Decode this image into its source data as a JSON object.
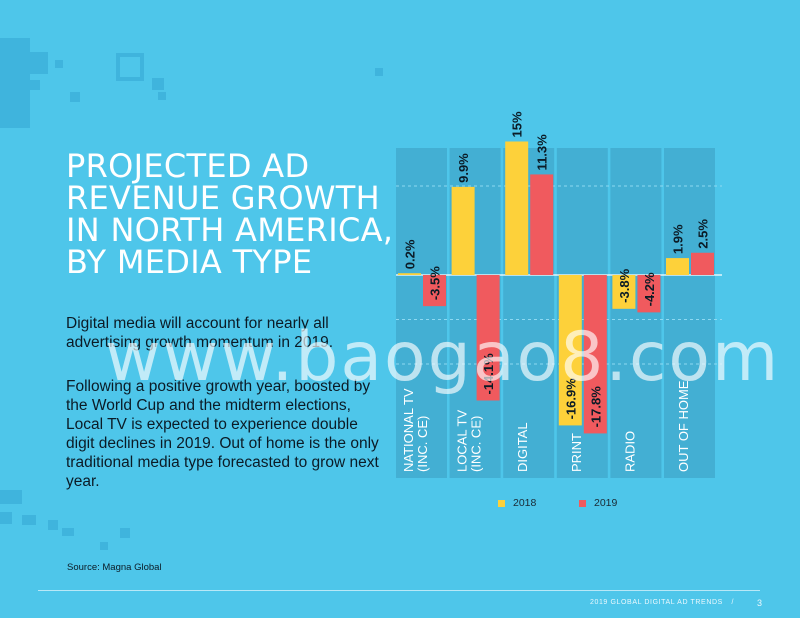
{
  "title_lines": [
    "PROJECTED AD",
    "REVENUE GROWTH",
    "IN NORTH AMERICA,",
    "BY MEDIA TYPE"
  ],
  "paragraph1": "Digital media will account for nearly all advertising growth momentum in 2019.",
  "paragraph2": "Following a positive growth year, boosted by the World Cup and the midterm elections, Local TV is expected to experience double digit declines in 2019. Out of home is the only traditional media type forecasted to grow next year.",
  "source": "Source: Magna Global",
  "footer": {
    "label": "2019 GLOBAL DIGITAL AD TRENDS",
    "separator": "/",
    "page": "3"
  },
  "watermark": "www.baogao8.com",
  "colors": {
    "background": "#4ec6ea",
    "band": "#43afd3",
    "series_2018": "#fdd13a",
    "series_2019": "#f05a5e"
  },
  "chart_data": {
    "type": "bar",
    "categories": [
      "NATIONAL TV (INC. CE)",
      "LOCAL TV (INC. CE)",
      "DIGITAL",
      "PRINT",
      "RADIO",
      "OUT OF HOME"
    ],
    "series": [
      {
        "name": "2018",
        "values": [
          0.2,
          9.9,
          15,
          -16.9,
          -3.8,
          1.9
        ],
        "labels": [
          "0.2%",
          "9.9%",
          "15%",
          "-16.9%",
          "-3.8%",
          "1.9%"
        ]
      },
      {
        "name": "2019",
        "values": [
          -3.5,
          -14.1,
          11.3,
          -17.8,
          -4.2,
          2.5
        ],
        "labels": [
          "-3.5%",
          "-14.1%",
          "11.3%",
          "-17.8%",
          "-4.2%",
          "2.5%"
        ]
      }
    ],
    "ylim": [
      -18,
      15
    ],
    "grid": true,
    "legend": "bottom"
  }
}
